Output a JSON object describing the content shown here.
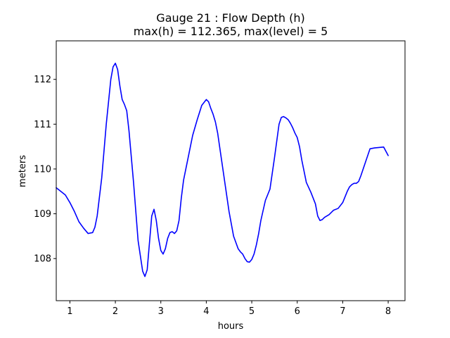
{
  "chart_data": {
    "type": "line",
    "title_line1": "Gauge 21 : Flow Depth (h)",
    "title_line2": "max(h) = 112.365,    max(level) = 5",
    "xlabel": "hours",
    "ylabel": "meters",
    "xlim": [
      0.7,
      8.37
    ],
    "ylim": [
      107.06,
      112.86
    ],
    "x_ticks": [
      1,
      2,
      3,
      4,
      5,
      6,
      7,
      8
    ],
    "y_ticks": [
      108,
      109,
      110,
      111,
      112
    ],
    "grid": false,
    "legend": "none",
    "line_color": "#0000ff",
    "series": [
      {
        "x": [
          0.7,
          0.8,
          0.9,
          1.0,
          1.1,
          1.2,
          1.3,
          1.4,
          1.5,
          1.55,
          1.6,
          1.7,
          1.8,
          1.9,
          1.95,
          2.0,
          2.05,
          2.1,
          2.15,
          2.2,
          2.25,
          2.3,
          2.4,
          2.5,
          2.6,
          2.65,
          2.7,
          2.75,
          2.8,
          2.85,
          2.9,
          2.95,
          3.0,
          3.05,
          3.1,
          3.15,
          3.2,
          3.25,
          3.3,
          3.35,
          3.4,
          3.45,
          3.5,
          3.55,
          3.6,
          3.7,
          3.8,
          3.9,
          4.0,
          4.05,
          4.1,
          4.15,
          4.2,
          4.25,
          4.3,
          4.4,
          4.5,
          4.6,
          4.7,
          4.75,
          4.8,
          4.85,
          4.9,
          4.95,
          5.0,
          5.05,
          5.1,
          5.15,
          5.2,
          5.3,
          5.4,
          5.5,
          5.6,
          5.65,
          5.7,
          5.75,
          5.8,
          5.85,
          5.9,
          5.95,
          6.0,
          6.05,
          6.1,
          6.2,
          6.3,
          6.4,
          6.45,
          6.5,
          6.55,
          6.6,
          6.7,
          6.8,
          6.9,
          7.0,
          7.1,
          7.15,
          7.2,
          7.25,
          7.3,
          7.35,
          7.4,
          7.5,
          7.6,
          7.7,
          7.8,
          7.9,
          8.0
        ],
        "y": [
          109.58,
          109.5,
          109.42,
          109.25,
          109.05,
          108.82,
          108.68,
          108.56,
          108.58,
          108.7,
          108.95,
          109.8,
          111.0,
          112.0,
          112.28,
          112.36,
          112.22,
          111.85,
          111.55,
          111.44,
          111.3,
          110.85,
          109.7,
          108.4,
          107.72,
          107.6,
          107.75,
          108.35,
          108.95,
          109.1,
          108.85,
          108.45,
          108.18,
          108.1,
          108.22,
          108.45,
          108.58,
          108.6,
          108.56,
          108.62,
          108.85,
          109.35,
          109.75,
          110.0,
          110.25,
          110.75,
          111.1,
          111.42,
          111.55,
          111.5,
          111.35,
          111.22,
          111.05,
          110.8,
          110.45,
          109.75,
          109.05,
          108.5,
          108.22,
          108.15,
          108.1,
          108.0,
          107.93,
          107.92,
          107.98,
          108.1,
          108.3,
          108.55,
          108.85,
          109.3,
          109.55,
          110.25,
          111.0,
          111.15,
          111.17,
          111.14,
          111.1,
          111.02,
          110.92,
          110.8,
          110.7,
          110.5,
          110.2,
          109.7,
          109.48,
          109.22,
          108.95,
          108.85,
          108.87,
          108.92,
          108.98,
          109.08,
          109.12,
          109.25,
          109.5,
          109.6,
          109.65,
          109.68,
          109.68,
          109.72,
          109.85,
          110.15,
          110.45,
          110.47,
          110.48,
          110.49,
          110.3
        ]
      }
    ]
  }
}
